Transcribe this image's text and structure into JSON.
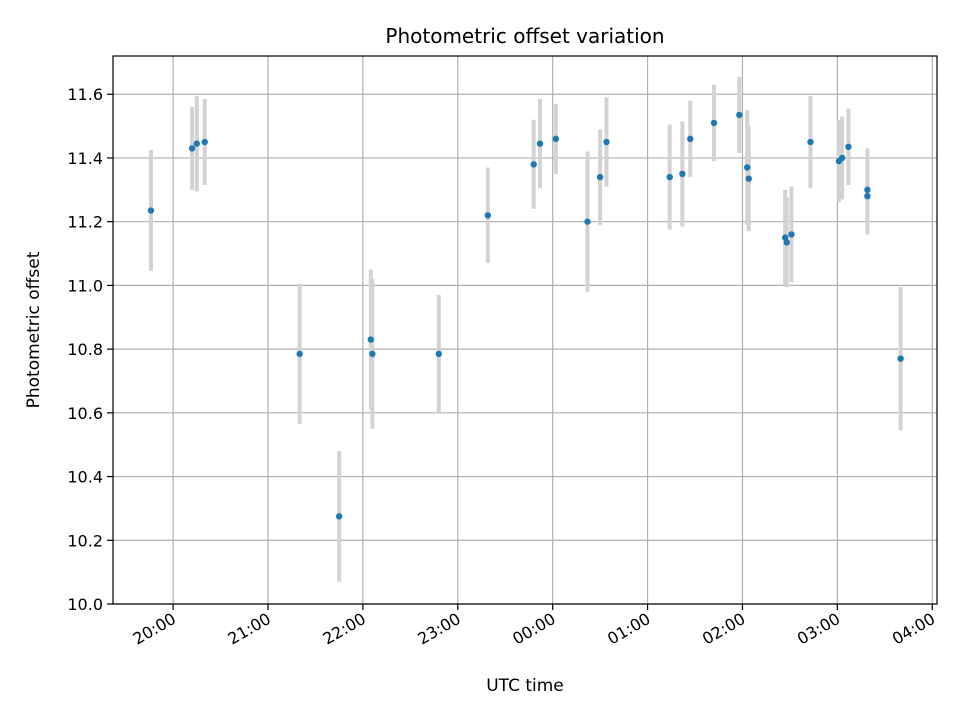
{
  "chart_data": {
    "type": "scatter",
    "title": "Photometric offset variation",
    "xlabel": "UTC time",
    "ylabel": "Photometric offset",
    "ylim": [
      10.0,
      11.72
    ],
    "xlim": [
      "19:22",
      "04:03"
    ],
    "grid": true,
    "x_ticks": [
      "20:00",
      "21:00",
      "22:00",
      "23:00",
      "00:00",
      "01:00",
      "02:00",
      "03:00",
      "04:00"
    ],
    "y_ticks": [
      "10.0",
      "10.2",
      "10.4",
      "10.6",
      "10.8",
      "11.0",
      "11.2",
      "11.4",
      "11.6"
    ],
    "colors": {
      "point": "#1f77b4",
      "errorbar": "#d3d3d3",
      "grid": "#b0b0b0"
    },
    "series": [
      {
        "points": [
          {
            "x": "19:46",
            "y": 11.235,
            "yerr": 0.19
          },
          {
            "x": "20:12",
            "y": 11.43,
            "yerr": 0.13
          },
          {
            "x": "20:15",
            "y": 11.445,
            "yerr": 0.15
          },
          {
            "x": "20:20",
            "y": 11.45,
            "yerr": 0.135
          },
          {
            "x": "21:20",
            "y": 10.785,
            "yerr": 0.22
          },
          {
            "x": "21:45",
            "y": 10.275,
            "yerr": 0.205
          },
          {
            "x": "22:05",
            "y": 10.83,
            "yerr": 0.22
          },
          {
            "x": "22:06",
            "y": 10.785,
            "yerr": 0.235
          },
          {
            "x": "22:48",
            "y": 10.785,
            "yerr": 0.185
          },
          {
            "x": "23:19",
            "y": 11.22,
            "yerr": 0.15
          },
          {
            "x": "23:48",
            "y": 11.38,
            "yerr": 0.14
          },
          {
            "x": "23:52",
            "y": 11.445,
            "yerr": 0.14
          },
          {
            "x": "00:02",
            "y": 11.46,
            "yerr": 0.11
          },
          {
            "x": "00:22",
            "y": 11.2,
            "yerr": 0.22
          },
          {
            "x": "00:30",
            "y": 11.34,
            "yerr": 0.15
          },
          {
            "x": "00:34",
            "y": 11.45,
            "yerr": 0.14
          },
          {
            "x": "01:14",
            "y": 11.34,
            "yerr": 0.165
          },
          {
            "x": "01:22",
            "y": 11.35,
            "yerr": 0.165
          },
          {
            "x": "01:27",
            "y": 11.46,
            "yerr": 0.12
          },
          {
            "x": "01:42",
            "y": 11.51,
            "yerr": 0.12
          },
          {
            "x": "01:58",
            "y": 11.535,
            "yerr": 0.12
          },
          {
            "x": "02:03",
            "y": 11.37,
            "yerr": 0.18
          },
          {
            "x": "02:04",
            "y": 11.335,
            "yerr": 0.165
          },
          {
            "x": "02:27",
            "y": 11.15,
            "yerr": 0.15
          },
          {
            "x": "02:28",
            "y": 11.135,
            "yerr": 0.14
          },
          {
            "x": "02:31",
            "y": 11.16,
            "yerr": 0.15
          },
          {
            "x": "02:43",
            "y": 11.45,
            "yerr": 0.145
          },
          {
            "x": "03:01",
            "y": 11.39,
            "yerr": 0.13
          },
          {
            "x": "03:03",
            "y": 11.4,
            "yerr": 0.13
          },
          {
            "x": "03:07",
            "y": 11.435,
            "yerr": 0.12
          },
          {
            "x": "03:19",
            "y": 11.3,
            "yerr": 0.13
          },
          {
            "x": "03:19",
            "y": 11.28,
            "yerr": 0.12
          },
          {
            "x": "03:40",
            "y": 10.77,
            "yerr": 0.225
          }
        ]
      }
    ]
  }
}
